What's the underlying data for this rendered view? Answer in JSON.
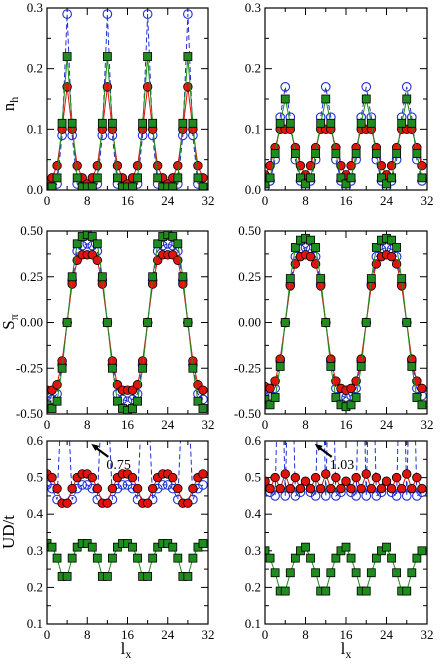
{
  "figure": {
    "ylabels": {
      "row0": "n",
      "row0_sub": "h",
      "row1": "S",
      "row1_sub": "π",
      "row2": "UD/t"
    },
    "xlabel": {
      "main": "l",
      "sub": "x"
    },
    "colors": {
      "open": "#1f2fd6",
      "red": "#e0140c",
      "green": "#1e8c1e",
      "frame": "#000000"
    }
  },
  "chart_data": [
    {
      "type": "line",
      "panel": "nh-left",
      "xlim": [
        0,
        32
      ],
      "ylim": [
        0,
        0.3
      ],
      "xticks": [
        "0",
        "8",
        "16",
        "24",
        "32"
      ],
      "yticks": [
        "0.0",
        "0.1",
        "0.2",
        "0.3"
      ],
      "x": [
        0,
        1,
        2,
        3,
        4,
        5,
        6,
        7,
        8,
        9,
        10,
        11,
        12,
        13,
        14,
        15,
        16,
        17,
        18,
        19,
        20,
        21,
        22,
        23,
        24,
        25,
        26,
        27,
        28,
        29,
        30,
        31
      ],
      "series": [
        {
          "style": "open-dashed",
          "values": [
            0.002,
            0.0,
            0.01,
            0.09,
            0.29,
            0.09,
            0.01,
            0.0,
            0.002,
            0.0,
            0.01,
            0.09,
            0.29,
            0.09,
            0.01,
            0.0,
            0.002,
            0.0,
            0.01,
            0.09,
            0.29,
            0.09,
            0.01,
            0.0,
            0.002,
            0.0,
            0.01,
            0.09,
            0.29,
            0.09,
            0.01,
            0.0
          ]
        },
        {
          "style": "red",
          "values": [
            0.01,
            0.02,
            0.04,
            0.1,
            0.17,
            0.1,
            0.04,
            0.02,
            0.01,
            0.02,
            0.04,
            0.1,
            0.17,
            0.1,
            0.04,
            0.02,
            0.01,
            0.02,
            0.04,
            0.1,
            0.17,
            0.1,
            0.04,
            0.02,
            0.01,
            0.02,
            0.04,
            0.1,
            0.17,
            0.1,
            0.04,
            0.02
          ]
        },
        {
          "style": "green",
          "values": [
            0.005,
            0.005,
            0.02,
            0.11,
            0.22,
            0.11,
            0.02,
            0.005,
            0.005,
            0.005,
            0.02,
            0.11,
            0.22,
            0.11,
            0.02,
            0.005,
            0.005,
            0.005,
            0.02,
            0.11,
            0.22,
            0.11,
            0.02,
            0.005,
            0.005,
            0.005,
            0.02,
            0.11,
            0.22,
            0.11,
            0.02,
            0.005
          ]
        }
      ]
    },
    {
      "type": "line",
      "panel": "nh-right",
      "xlim": [
        0,
        32
      ],
      "ylim": [
        0,
        0.3
      ],
      "xticks": [
        "0",
        "8",
        "16",
        "24",
        "32"
      ],
      "yticks": [
        "0.0",
        "0.1",
        "0.2",
        "0.3"
      ],
      "x": [
        0,
        1,
        2,
        3,
        4,
        5,
        6,
        7,
        8,
        9,
        10,
        11,
        12,
        13,
        14,
        15,
        16,
        17,
        18,
        19,
        20,
        21,
        22,
        23,
        24,
        25,
        26,
        27,
        28,
        29,
        30,
        31
      ],
      "series": [
        {
          "style": "open-dashed",
          "values": [
            0.005,
            0.015,
            0.05,
            0.12,
            0.17,
            0.12,
            0.05,
            0.015,
            0.005,
            0.015,
            0.05,
            0.12,
            0.17,
            0.12,
            0.05,
            0.015,
            0.005,
            0.015,
            0.05,
            0.12,
            0.17,
            0.12,
            0.05,
            0.015,
            0.005,
            0.015,
            0.05,
            0.12,
            0.17,
            0.12,
            0.05,
            0.015
          ]
        },
        {
          "style": "red",
          "values": [
            0.025,
            0.04,
            0.07,
            0.1,
            0.1,
            0.1,
            0.07,
            0.04,
            0.025,
            0.04,
            0.07,
            0.1,
            0.1,
            0.1,
            0.07,
            0.04,
            0.025,
            0.04,
            0.07,
            0.1,
            0.1,
            0.1,
            0.07,
            0.04,
            0.025,
            0.04,
            0.07,
            0.1,
            0.1,
            0.1,
            0.07,
            0.04
          ]
        },
        {
          "style": "green",
          "values": [
            0.01,
            0.02,
            0.06,
            0.11,
            0.15,
            0.11,
            0.06,
            0.02,
            0.01,
            0.02,
            0.06,
            0.11,
            0.15,
            0.11,
            0.06,
            0.02,
            0.01,
            0.02,
            0.06,
            0.11,
            0.15,
            0.11,
            0.06,
            0.02,
            0.01,
            0.02,
            0.06,
            0.11,
            0.15,
            0.11,
            0.06,
            0.02
          ]
        }
      ]
    },
    {
      "type": "line",
      "panel": "spi-left",
      "xlim": [
        0,
        32
      ],
      "ylim": [
        -0.5,
        0.5
      ],
      "xticks": [
        "0",
        "8",
        "16",
        "24",
        "32"
      ],
      "yticks": [
        "-0.50",
        "-0.25",
        "0.00",
        "0.25",
        "0.50"
      ],
      "x": [
        0,
        1,
        2,
        3,
        4,
        5,
        6,
        7,
        8,
        9,
        10,
        11,
        12,
        13,
        14,
        15,
        16,
        17,
        18,
        19,
        20,
        21,
        22,
        23,
        24,
        25,
        26,
        27,
        28,
        29,
        30,
        31
      ],
      "series": [
        {
          "style": "open-dashed",
          "values": [
            -0.4,
            -0.42,
            -0.39,
            -0.23,
            0.0,
            0.23,
            0.39,
            0.42,
            0.43,
            0.42,
            0.39,
            0.23,
            0.0,
            -0.23,
            -0.39,
            -0.42,
            -0.43,
            -0.42,
            -0.39,
            -0.23,
            0.0,
            0.23,
            0.39,
            0.42,
            0.43,
            0.42,
            0.39,
            0.23,
            0.0,
            -0.23,
            -0.39,
            -0.42
          ]
        },
        {
          "style": "red",
          "values": [
            -0.37,
            -0.37,
            -0.34,
            -0.21,
            0.0,
            0.21,
            0.34,
            0.37,
            0.37,
            0.37,
            0.34,
            0.21,
            0.0,
            -0.21,
            -0.34,
            -0.37,
            -0.37,
            -0.37,
            -0.34,
            -0.21,
            0.0,
            0.21,
            0.34,
            0.37,
            0.37,
            0.37,
            0.34,
            0.21,
            0.0,
            -0.21,
            -0.34,
            -0.37
          ]
        },
        {
          "style": "green",
          "values": [
            -0.45,
            -0.47,
            -0.43,
            -0.25,
            0.0,
            0.25,
            0.43,
            0.47,
            0.48,
            0.47,
            0.43,
            0.25,
            0.0,
            -0.25,
            -0.43,
            -0.47,
            -0.48,
            -0.47,
            -0.43,
            -0.25,
            0.0,
            0.25,
            0.43,
            0.47,
            0.48,
            0.47,
            0.43,
            0.25,
            0.0,
            -0.25,
            -0.43,
            -0.47
          ]
        }
      ]
    },
    {
      "type": "line",
      "panel": "spi-right",
      "xlim": [
        0,
        32
      ],
      "ylim": [
        -0.5,
        0.5
      ],
      "xticks": [
        "0",
        "8",
        "16",
        "24",
        "32"
      ],
      "yticks": [
        "-0.50",
        "-0.25",
        "0.00",
        "0.25",
        "0.50"
      ],
      "x": [
        0,
        1,
        2,
        3,
        4,
        5,
        6,
        7,
        8,
        9,
        10,
        11,
        12,
        13,
        14,
        15,
        16,
        17,
        18,
        19,
        20,
        21,
        22,
        23,
        24,
        25,
        26,
        27,
        28,
        29,
        30,
        31
      ],
      "series": [
        {
          "style": "open-dashed",
          "values": [
            -0.38,
            -0.4,
            -0.36,
            -0.21,
            0.0,
            0.21,
            0.36,
            0.4,
            0.41,
            0.4,
            0.36,
            0.21,
            0.0,
            -0.21,
            -0.36,
            -0.4,
            -0.41,
            -0.4,
            -0.36,
            -0.21,
            0.0,
            0.21,
            0.36,
            0.4,
            0.41,
            0.4,
            0.36,
            0.21,
            0.0,
            -0.21,
            -0.36,
            -0.4
          ]
        },
        {
          "style": "red",
          "values": [
            -0.35,
            -0.36,
            -0.32,
            -0.2,
            0.0,
            0.2,
            0.32,
            0.36,
            0.37,
            0.36,
            0.32,
            0.2,
            0.0,
            -0.2,
            -0.32,
            -0.36,
            -0.37,
            -0.36,
            -0.32,
            -0.2,
            0.0,
            0.2,
            0.32,
            0.36,
            0.37,
            0.36,
            0.32,
            0.2,
            0.0,
            -0.2,
            -0.32,
            -0.36
          ]
        },
        {
          "style": "green",
          "values": [
            -0.42,
            -0.45,
            -0.41,
            -0.24,
            0.0,
            0.24,
            0.41,
            0.45,
            0.46,
            0.45,
            0.41,
            0.24,
            0.0,
            -0.24,
            -0.41,
            -0.45,
            -0.46,
            -0.45,
            -0.41,
            -0.24,
            0.0,
            0.24,
            0.41,
            0.45,
            0.46,
            0.45,
            0.41,
            0.24,
            0.0,
            -0.24,
            -0.41,
            -0.45
          ]
        }
      ]
    },
    {
      "type": "line",
      "panel": "ud-left",
      "xlim": [
        0,
        32
      ],
      "ylim": [
        0.1,
        0.6
      ],
      "xticks": [
        "0",
        "8",
        "16",
        "24",
        "32"
      ],
      "yticks": [
        "0.1",
        "0.2",
        "0.3",
        "0.4",
        "0.5",
        "0.6"
      ],
      "annotation": {
        "text": "0.75",
        "x": 11,
        "y": 0.595
      },
      "x": [
        0,
        1,
        2,
        3,
        4,
        5,
        6,
        7,
        8,
        9,
        10,
        11,
        12,
        13,
        14,
        15,
        16,
        17,
        18,
        19,
        20,
        21,
        22,
        23,
        24,
        25,
        26,
        27,
        28,
        29,
        30,
        31
      ],
      "series": [
        {
          "style": "open-dashed",
          "values": [
            0.48,
            0.47,
            0.44,
            0.75,
            0.75,
            0.44,
            0.47,
            0.48,
            0.48,
            0.47,
            0.44,
            0.75,
            0.75,
            0.44,
            0.47,
            0.48,
            0.48,
            0.47,
            0.44,
            0.75,
            0.75,
            0.44,
            0.47,
            0.48,
            0.48,
            0.47,
            0.44,
            0.75,
            0.75,
            0.44,
            0.47,
            0.48
          ]
        },
        {
          "style": "red",
          "values": [
            0.51,
            0.5,
            0.47,
            0.43,
            0.43,
            0.47,
            0.5,
            0.51,
            0.51,
            0.5,
            0.47,
            0.43,
            0.43,
            0.47,
            0.5,
            0.51,
            0.51,
            0.5,
            0.47,
            0.43,
            0.43,
            0.47,
            0.5,
            0.51,
            0.51,
            0.5,
            0.47,
            0.43,
            0.43,
            0.47,
            0.5,
            0.51
          ]
        },
        {
          "style": "green",
          "values": [
            0.32,
            0.31,
            0.28,
            0.23,
            0.23,
            0.28,
            0.31,
            0.32,
            0.32,
            0.31,
            0.28,
            0.23,
            0.23,
            0.28,
            0.31,
            0.32,
            0.32,
            0.31,
            0.28,
            0.23,
            0.23,
            0.28,
            0.31,
            0.32,
            0.32,
            0.31,
            0.28,
            0.23,
            0.23,
            0.28,
            0.31,
            0.32
          ]
        }
      ]
    },
    {
      "type": "line",
      "panel": "ud-right",
      "xlim": [
        0,
        32
      ],
      "ylim": [
        0.1,
        0.6
      ],
      "xticks": [
        "0",
        "8",
        "16",
        "24",
        "32"
      ],
      "yticks": [
        "0.1",
        "0.2",
        "0.3",
        "0.4",
        "0.5",
        "0.6"
      ],
      "annotation": {
        "text": "1.03",
        "x": 12,
        "y": 0.595
      },
      "x": [
        0,
        1,
        2,
        3,
        4,
        5,
        6,
        7,
        8,
        9,
        10,
        11,
        12,
        13,
        14,
        15,
        16,
        17,
        18,
        19,
        20,
        21,
        22,
        23,
        24,
        25,
        26,
        27,
        28,
        29,
        30,
        31
      ],
      "series": [
        {
          "style": "open-dashed",
          "values": [
            0.48,
            0.46,
            0.45,
            1.03,
            0.45,
            1.03,
            0.45,
            0.46,
            0.48,
            0.46,
            0.45,
            1.03,
            0.45,
            1.03,
            0.45,
            0.46,
            0.48,
            0.46,
            0.45,
            1.03,
            0.45,
            1.03,
            0.45,
            0.46,
            0.48,
            0.46,
            0.45,
            1.03,
            0.45,
            1.03,
            0.45,
            0.46
          ]
        },
        {
          "style": "red",
          "values": [
            0.49,
            0.47,
            0.5,
            0.47,
            0.51,
            0.47,
            0.5,
            0.47,
            0.49,
            0.47,
            0.5,
            0.47,
            0.51,
            0.47,
            0.5,
            0.47,
            0.49,
            0.47,
            0.5,
            0.47,
            0.51,
            0.47,
            0.5,
            0.47,
            0.49,
            0.47,
            0.5,
            0.47,
            0.51,
            0.47,
            0.5,
            0.47
          ]
        },
        {
          "style": "green",
          "values": [
            0.3,
            0.28,
            0.24,
            0.19,
            0.19,
            0.24,
            0.28,
            0.3,
            0.31,
            0.28,
            0.24,
            0.19,
            0.19,
            0.24,
            0.28,
            0.3,
            0.31,
            0.28,
            0.24,
            0.19,
            0.19,
            0.24,
            0.28,
            0.3,
            0.31,
            0.28,
            0.24,
            0.19,
            0.19,
            0.24,
            0.28,
            0.3
          ]
        }
      ]
    }
  ]
}
